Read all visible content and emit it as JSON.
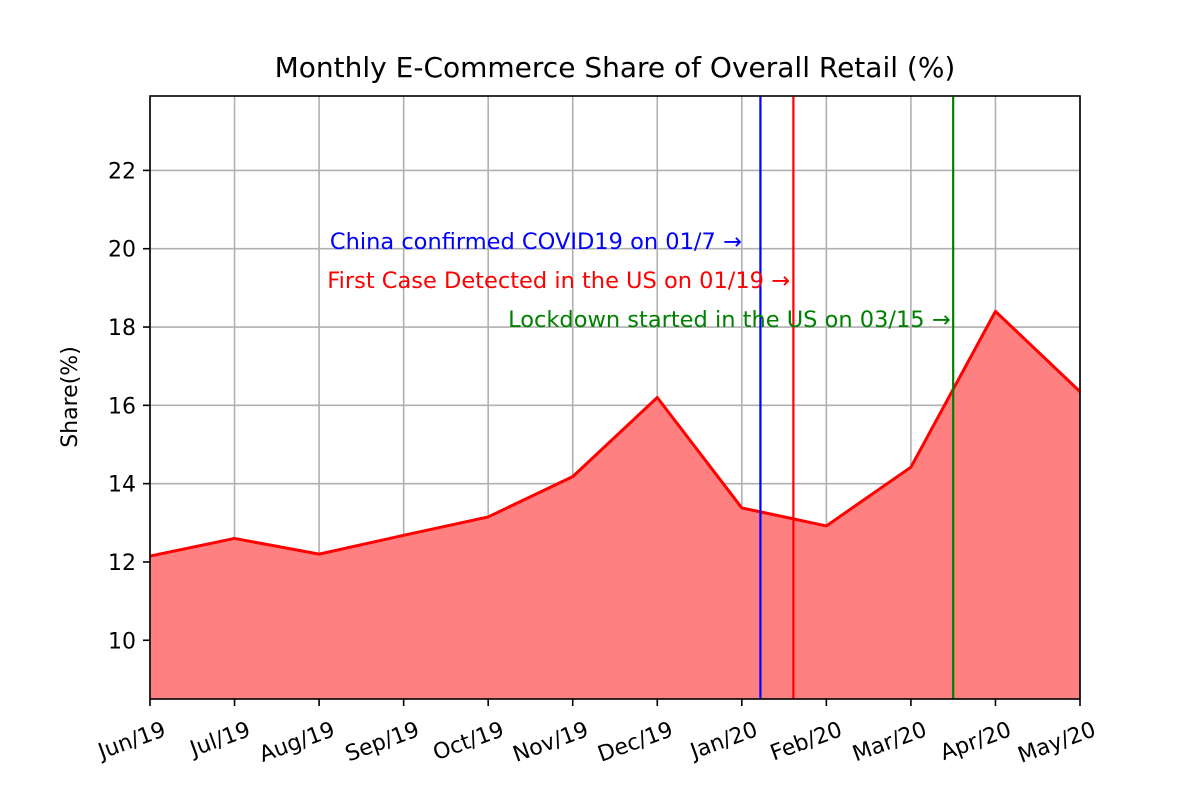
{
  "chart_data": {
    "type": "area",
    "title": "Monthly E-Commerce Share of Overall Retail (%)",
    "xlabel": "",
    "ylabel": "Share(%)",
    "categories": [
      "Jun/19",
      "Jul/19",
      "Aug/19",
      "Sep/19",
      "Oct/19",
      "Nov/19",
      "Dec/19",
      "Jan/20",
      "Feb/20",
      "Mar/20",
      "Apr/20",
      "May/20"
    ],
    "series": [
      {
        "values": [
          12.15,
          12.6,
          12.2,
          12.68,
          13.15,
          14.18,
          16.2,
          13.38,
          12.92,
          14.42,
          18.4,
          16.35
        ],
        "color": "#ff0000",
        "fill": "#ff8080"
      }
    ],
    "ylim": [
      8.5,
      23.9
    ],
    "yticks": [
      10,
      12,
      14,
      16,
      18,
      20,
      22
    ],
    "xlim": [
      0,
      11
    ],
    "grid": true,
    "vlines": [
      {
        "x": 7.22,
        "color": "#0000ff"
      },
      {
        "x": 7.61,
        "color": "#ff0000"
      },
      {
        "x": 9.5,
        "color": "#008000"
      }
    ],
    "annotations": [
      {
        "text": "China confirmed COVID19 on 01/7 →",
        "x": 7.0,
        "y": 20.2,
        "color": "#0000ff"
      },
      {
        "text": "First Case Detected in the US on 01/19 →",
        "x": 7.57,
        "y": 19.2,
        "color": "#ff0000"
      },
      {
        "text": "Lockdown started in the US on 03/15 →",
        "x": 9.47,
        "y": 18.2,
        "color": "#008000"
      }
    ]
  }
}
